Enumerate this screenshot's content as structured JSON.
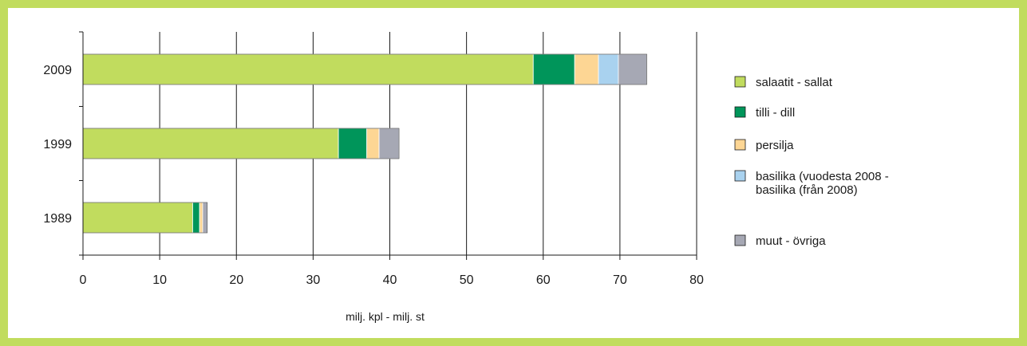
{
  "chart_data": {
    "type": "bar",
    "orientation": "horizontal",
    "stacked": true,
    "categories": [
      "2009",
      "1999",
      "1989"
    ],
    "series": [
      {
        "name": "salaatit - sallat",
        "color": "#c1dc5e",
        "values": [
          58.7,
          33.3,
          14.3
        ]
      },
      {
        "name": "tilli - dill",
        "color": "#00955a",
        "values": [
          5.4,
          3.7,
          0.9
        ]
      },
      {
        "name": "persilja",
        "color": "#fdd694",
        "values": [
          3.1,
          1.6,
          0.4
        ]
      },
      {
        "name": "basilika (vuodesta 2008 -\nbasilika (från 2008)",
        "color": "#a9d2ef",
        "values": [
          2.6,
          0,
          0
        ]
      },
      {
        "name": "muut - övriga",
        "color": "#a6a8b4",
        "values": [
          3.7,
          2.6,
          0.6
        ]
      }
    ],
    "xlim": [
      0,
      80
    ],
    "xticks": [
      0,
      10,
      20,
      30,
      40,
      50,
      60,
      70,
      80
    ],
    "xlabel": "milj. kpl - milj. st",
    "ylabel": "",
    "title": "",
    "grid": "vertical",
    "legend": "right",
    "frame_color": "#c1dc5e"
  }
}
